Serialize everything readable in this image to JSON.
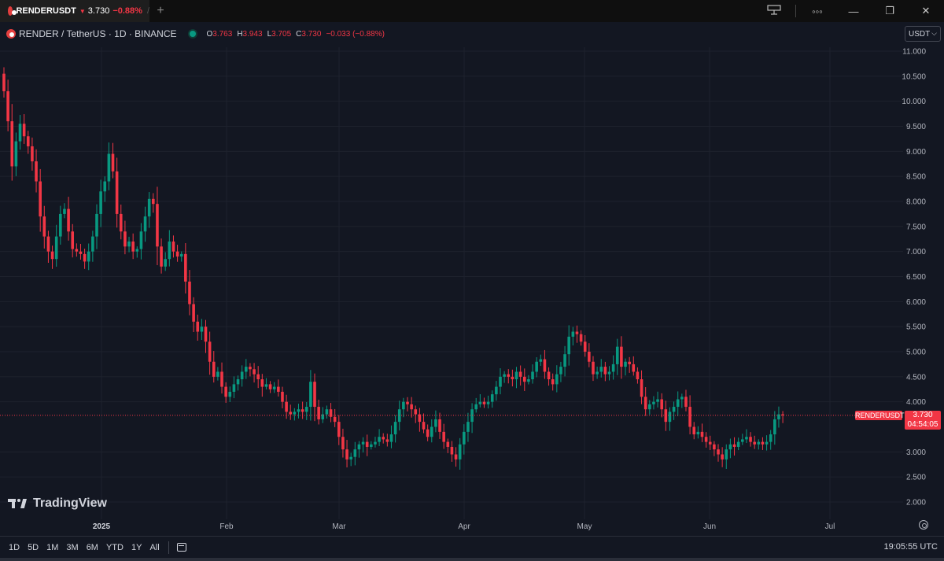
{
  "window": {
    "tab": {
      "symbol": "RENDERUSDT",
      "arrow": "▼",
      "price": "3.730",
      "change": "−0.88%",
      "trail": "/"
    },
    "new_tab": "+",
    "controls": [
      "layout-icon",
      "more-icon",
      "minimize-icon",
      "restore-icon",
      "close-icon"
    ]
  },
  "legend": {
    "title": "RENDER / TetherUS · 1D · BINANCE",
    "o_label": "O",
    "o": "3.763",
    "h_label": "H",
    "h": "3.943",
    "l_label": "L",
    "l": "3.705",
    "c_label": "C",
    "c": "3.730",
    "change": "−0.033 (−0.88%)"
  },
  "currency_selector": "USDT",
  "price_axis": {
    "labels": [
      "11.000",
      "10.500",
      "10.000",
      "9.500",
      "9.000",
      "8.500",
      "8.000",
      "7.500",
      "7.000",
      "6.500",
      "6.000",
      "5.500",
      "5.000",
      "4.500",
      "4.000",
      "3.000",
      "2.500",
      "2.000"
    ]
  },
  "time_axis": {
    "labels": [
      "2025",
      "Feb",
      "Mar",
      "Apr",
      "May",
      "Jun",
      "Jul"
    ]
  },
  "last_price": {
    "symbol": "RENDERUSDT",
    "price": "3.730",
    "countdown": "04:54:05"
  },
  "branding": "TradingView",
  "bottom_toolbar": {
    "ranges": [
      "1D",
      "5D",
      "1M",
      "3M",
      "6M",
      "YTD",
      "1Y",
      "All"
    ],
    "clock": "19:05:55 UTC"
  },
  "colors": {
    "up": "#089981",
    "down": "#f23645",
    "background": "#131722",
    "grid": "#1e222d"
  },
  "chart_data": {
    "type": "candlestick",
    "symbol": "RENDERUSDT",
    "interval": "1D",
    "exchange": "BINANCE",
    "ylim": [
      2.0,
      11.0
    ],
    "x_labels": [
      "2025",
      "Feb",
      "Mar",
      "Apr",
      "May",
      "Jun",
      "Jul"
    ],
    "last": 3.73,
    "closes": [
      10.2,
      9.6,
      8.7,
      9.2,
      9.55,
      9.3,
      9.1,
      8.8,
      8.4,
      7.7,
      7.3,
      7.0,
      6.85,
      7.3,
      7.75,
      7.85,
      7.4,
      7.05,
      7.0,
      6.95,
      6.8,
      7.0,
      7.3,
      7.75,
      8.2,
      8.4,
      8.95,
      8.6,
      7.75,
      7.4,
      7.1,
      7.2,
      7.0,
      7.05,
      7.4,
      7.7,
      8.05,
      7.95,
      7.1,
      6.7,
      6.85,
      7.2,
      7.0,
      6.9,
      6.95,
      6.4,
      5.95,
      5.6,
      5.4,
      5.5,
      5.2,
      4.8,
      4.5,
      4.6,
      4.3,
      4.1,
      4.2,
      4.35,
      4.45,
      4.6,
      4.7,
      4.65,
      4.55,
      4.45,
      4.3,
      4.35,
      4.25,
      4.3,
      4.2,
      4.0,
      3.8,
      3.75,
      3.8,
      3.85,
      3.8,
      3.9,
      4.4,
      3.9,
      3.65,
      3.75,
      3.85,
      3.7,
      3.6,
      3.3,
      3.05,
      2.85,
      2.9,
      3.05,
      3.15,
      3.2,
      3.1,
      3.15,
      3.2,
      3.3,
      3.25,
      3.2,
      3.35,
      3.6,
      3.85,
      4.0,
      3.95,
      3.85,
      3.75,
      3.6,
      3.45,
      3.3,
      3.5,
      3.65,
      3.4,
      3.2,
      3.1,
      2.95,
      2.85,
      3.15,
      3.4,
      3.6,
      3.85,
      3.95,
      4.0,
      3.95,
      4.0,
      4.15,
      4.3,
      4.5,
      4.55,
      4.5,
      4.45,
      4.6,
      4.5,
      4.4,
      4.45,
      4.6,
      4.8,
      4.85,
      4.6,
      4.45,
      4.35,
      4.55,
      4.7,
      4.95,
      5.3,
      5.4,
      5.35,
      5.2,
      5.0,
      4.8,
      4.55,
      4.6,
      4.7,
      4.55,
      4.6,
      4.75,
      5.1,
      4.7,
      4.8,
      4.75,
      4.6,
      4.45,
      4.1,
      3.85,
      3.95,
      4.0,
      4.05,
      3.85,
      3.6,
      3.8,
      3.9,
      4.05,
      4.1,
      3.9,
      3.5,
      3.35,
      3.4,
      3.3,
      3.2,
      3.15,
      3.05,
      2.95,
      2.85,
      3.05,
      3.15,
      3.1,
      3.2,
      3.25,
      3.3,
      3.2,
      3.15,
      3.2,
      3.15,
      3.2,
      3.35,
      3.65,
      3.75,
      3.73
    ]
  }
}
